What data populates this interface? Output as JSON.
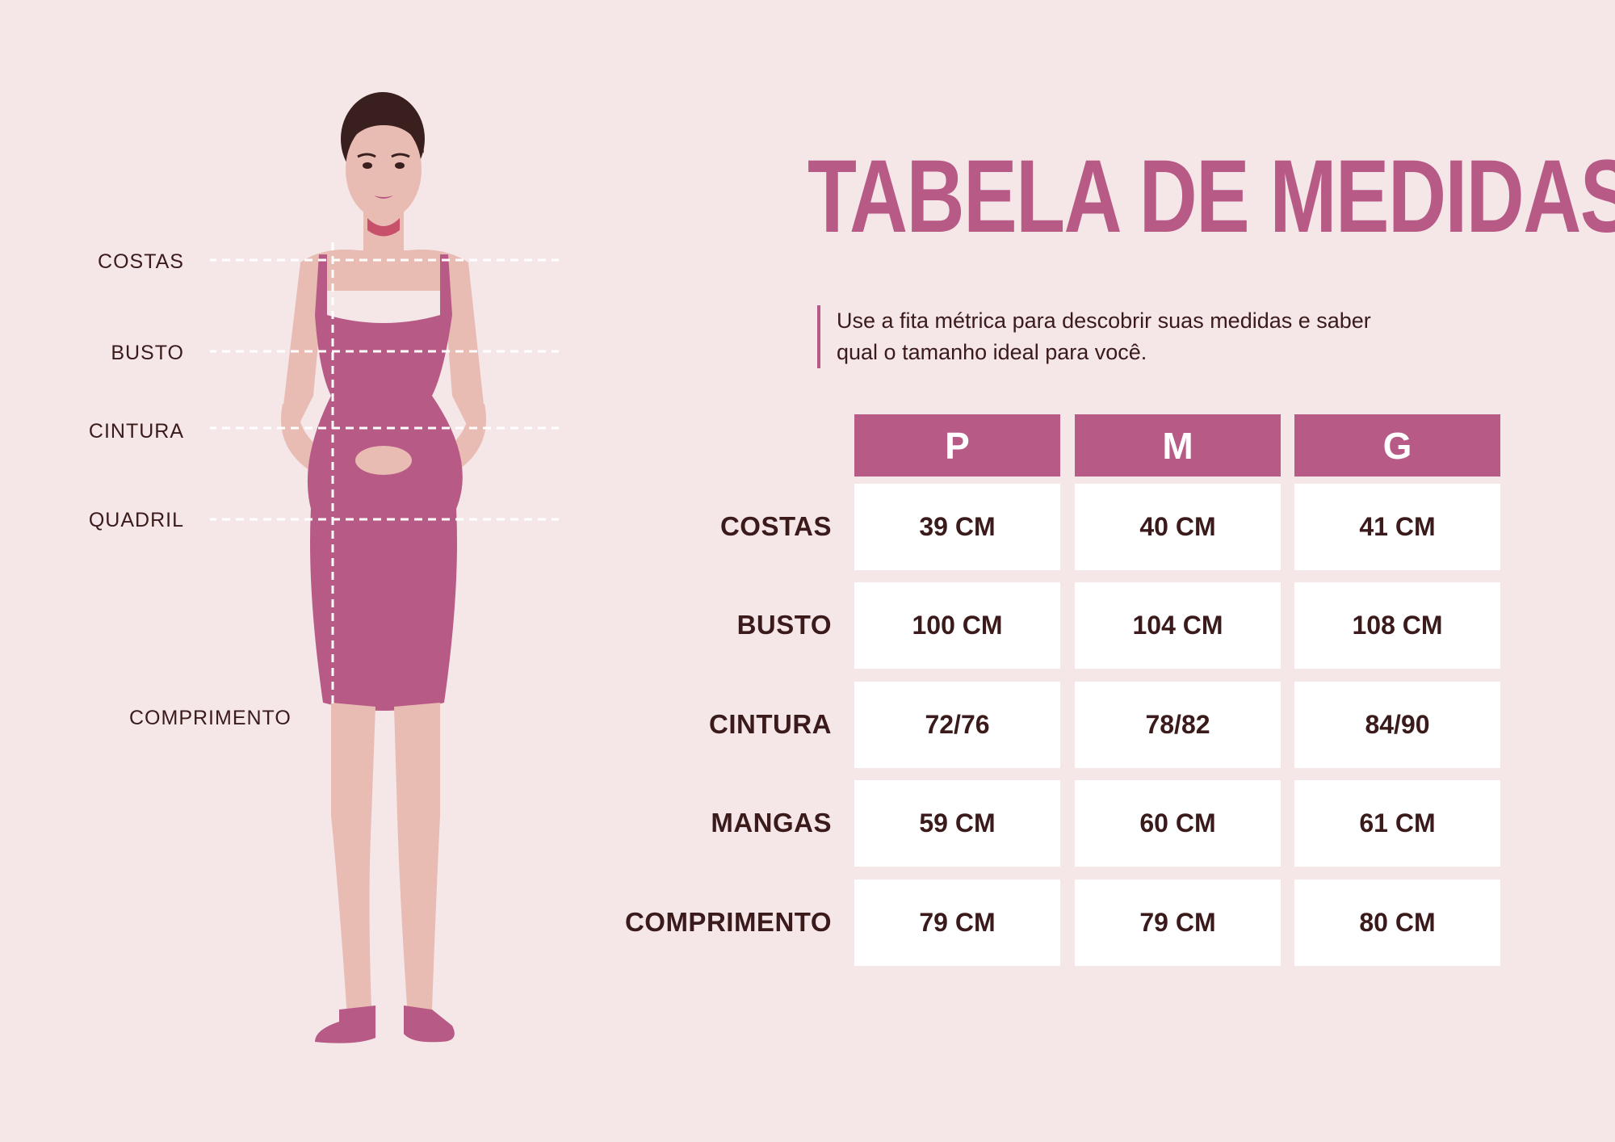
{
  "page": {
    "title": "TABELA DE MEDIDAS",
    "subtitle": "Use a fita métrica para descobrir suas medidas e saber qual o tamanho ideal para você."
  },
  "figure": {
    "labels": {
      "costas": "COSTAS",
      "busto": "BUSTO",
      "cintura": "CINTURA",
      "quadril": "QUADRIL",
      "comprimento": "COMPRIMENTO"
    }
  },
  "size_table": {
    "columns": [
      "P",
      "M",
      "G"
    ],
    "rows": [
      {
        "label": "COSTAS",
        "values": [
          "39 CM",
          "40 CM",
          "41 CM"
        ]
      },
      {
        "label": "BUSTO",
        "values": [
          "100 CM",
          "104 CM",
          "108 CM"
        ]
      },
      {
        "label": "CINTURA",
        "values": [
          "72/76",
          "78/82",
          "84/90"
        ]
      },
      {
        "label": "MANGAS",
        "values": [
          "59 CM",
          "60 CM",
          "61 CM"
        ]
      },
      {
        "label": "COMPRIMENTO",
        "values": [
          "79 CM",
          "79 CM",
          "80 CM"
        ]
      }
    ]
  },
  "colors": {
    "background": "#f5e6e8",
    "accent": "#b85a86",
    "text": "#3a1a1a",
    "skin": "#e8bbb3",
    "dress": "#b85a86"
  }
}
